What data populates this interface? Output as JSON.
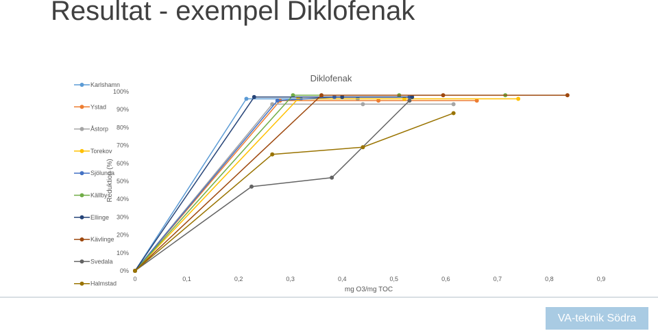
{
  "slide": {
    "title": "Resultat - exempel Diklofenak",
    "logo_text": "VA-teknik Södra"
  },
  "chart_data": {
    "type": "line",
    "title": "Diklofenak",
    "xlabel": "mg O3/mg TOC",
    "ylabel": "Reduktion (%)",
    "xlim": [
      0,
      0.9
    ],
    "ylim": [
      0,
      100
    ],
    "x_ticks": [
      "0",
      "0,1",
      "0,2",
      "0,3",
      "0,4",
      "0,5",
      "0,6",
      "0,7",
      "0,8",
      "0,9"
    ],
    "y_ticks": [
      "0%",
      "10%",
      "20%",
      "30%",
      "40%",
      "50%",
      "60%",
      "70%",
      "80%",
      "90%",
      "100%"
    ],
    "legend_position": "left",
    "grid": false,
    "series": [
      {
        "name": "Karlshamn",
        "color": "#5b9bd5",
        "points": [
          [
            0,
            0
          ],
          [
            0.215,
            96
          ],
          [
            0.32,
            96
          ],
          [
            0.43,
            96
          ]
        ]
      },
      {
        "name": "Ystad",
        "color": "#ed7d31",
        "points": [
          [
            0,
            0
          ],
          [
            0.28,
            95
          ],
          [
            0.47,
            95
          ],
          [
            0.66,
            95
          ]
        ]
      },
      {
        "name": "Åstorp",
        "color": "#a5a5a5",
        "points": [
          [
            0,
            0
          ],
          [
            0.265,
            93
          ],
          [
            0.44,
            93
          ],
          [
            0.615,
            93
          ]
        ]
      },
      {
        "name": "Torekov",
        "color": "#ffc000",
        "points": [
          [
            0,
            0
          ],
          [
            0.315,
            96
          ],
          [
            0.52,
            96
          ],
          [
            0.74,
            96
          ]
        ]
      },
      {
        "name": "Sjölunda",
        "color": "#4472c4",
        "points": [
          [
            0,
            0
          ],
          [
            0.275,
            95
          ],
          [
            0.385,
            97
          ],
          [
            0.53,
            97
          ]
        ]
      },
      {
        "name": "Källby",
        "color": "#70ad47",
        "points": [
          [
            0,
            0
          ],
          [
            0.305,
            98
          ],
          [
            0.51,
            98
          ],
          [
            0.715,
            98
          ]
        ]
      },
      {
        "name": "Ellinge",
        "color": "#264478",
        "points": [
          [
            0,
            0
          ],
          [
            0.23,
            97
          ],
          [
            0.4,
            97
          ],
          [
            0.535,
            97
          ]
        ]
      },
      {
        "name": "Kävlinge",
        "color": "#9e480e",
        "points": [
          [
            0,
            0
          ],
          [
            0.36,
            98
          ],
          [
            0.595,
            98
          ],
          [
            0.835,
            98
          ]
        ]
      },
      {
        "name": "Svedala",
        "color": "#636363",
        "points": [
          [
            0,
            0
          ],
          [
            0.225,
            47
          ],
          [
            0.38,
            52
          ],
          [
            0.53,
            95
          ]
        ]
      },
      {
        "name": "Halmstad",
        "color": "#997300",
        "points": [
          [
            0,
            0
          ],
          [
            0.265,
            65
          ],
          [
            0.44,
            69
          ],
          [
            0.615,
            88
          ]
        ]
      }
    ]
  }
}
